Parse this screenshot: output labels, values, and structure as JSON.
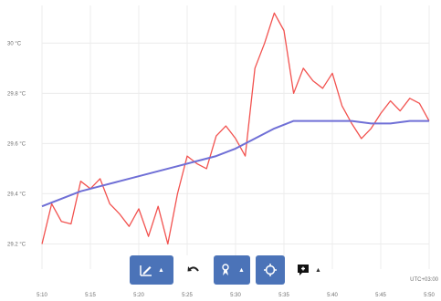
{
  "chart_data": {
    "type": "line",
    "y_ticks": [
      "29.2 °C",
      "29.4 °C",
      "29.6 °C",
      "29.8 °C",
      "30 °C"
    ],
    "y_tick_values": [
      29.2,
      29.4,
      29.6,
      29.8,
      30.0
    ],
    "ylim": [
      29.1,
      30.15
    ],
    "x_ticks": [
      "5:10",
      "5:15",
      "5:20",
      "5:25",
      "5:30",
      "5:35",
      "5:40",
      "5:45",
      "5:50"
    ],
    "xlim": [
      "5:10",
      "5:50"
    ],
    "grid": true,
    "series": [
      {
        "color": "#f2524f",
        "x": [
          "5:10",
          "5:11",
          "5:12",
          "5:13",
          "5:14",
          "5:15",
          "5:16",
          "5:17",
          "5:18",
          "5:19",
          "5:20",
          "5:21",
          "5:22",
          "5:23",
          "5:24",
          "5:25",
          "5:26",
          "5:27",
          "5:28",
          "5:29",
          "5:30",
          "5:31",
          "5:32",
          "5:33",
          "5:34",
          "5:35",
          "5:36",
          "5:37",
          "5:38",
          "5:39",
          "5:40",
          "5:41",
          "5:42",
          "5:43",
          "5:44",
          "5:45",
          "5:46",
          "5:47",
          "5:48",
          "5:49",
          "5:50"
        ],
        "values": [
          29.2,
          29.36,
          29.29,
          29.28,
          29.45,
          29.42,
          29.46,
          29.36,
          29.32,
          29.27,
          29.34,
          29.23,
          29.35,
          29.2,
          29.4,
          29.55,
          29.52,
          29.5,
          29.63,
          29.67,
          29.62,
          29.55,
          29.9,
          30.0,
          30.12,
          30.05,
          29.8,
          29.9,
          29.85,
          29.82,
          29.88,
          29.75,
          29.68,
          29.62,
          29.66,
          29.72,
          29.77,
          29.73,
          29.78,
          29.76,
          29.69
        ]
      },
      {
        "color": "#6f6fd6",
        "x": [
          "5:10",
          "5:12",
          "5:14",
          "5:16",
          "5:18",
          "5:20",
          "5:22",
          "5:24",
          "5:26",
          "5:28",
          "5:30",
          "5:32",
          "5:34",
          "5:36",
          "5:38",
          "5:40",
          "5:42",
          "5:44",
          "5:46",
          "5:48",
          "5:50"
        ],
        "values": [
          29.35,
          29.38,
          29.41,
          29.43,
          29.45,
          29.47,
          29.49,
          29.51,
          29.53,
          29.55,
          29.58,
          29.62,
          29.66,
          29.69,
          29.69,
          29.69,
          29.69,
          29.68,
          29.68,
          29.69,
          29.69
        ]
      }
    ]
  },
  "timezone_label": "UTC+03:00",
  "toolbar": {
    "buttons": [
      {
        "icon": "edit-chart-icon",
        "dropdown": true,
        "style": "primary",
        "color": "#4b73b8"
      },
      {
        "icon": "undo-icon",
        "dropdown": false,
        "style": "plain"
      },
      {
        "icon": "pin-select-icon",
        "dropdown": true,
        "style": "primary",
        "color": "#4b73b8"
      },
      {
        "icon": "crosshair-target-icon",
        "dropdown": false,
        "style": "primary",
        "color": "#4b73b8"
      },
      {
        "icon": "annotation-note-icon",
        "dropdown": true,
        "style": "plain"
      }
    ]
  }
}
